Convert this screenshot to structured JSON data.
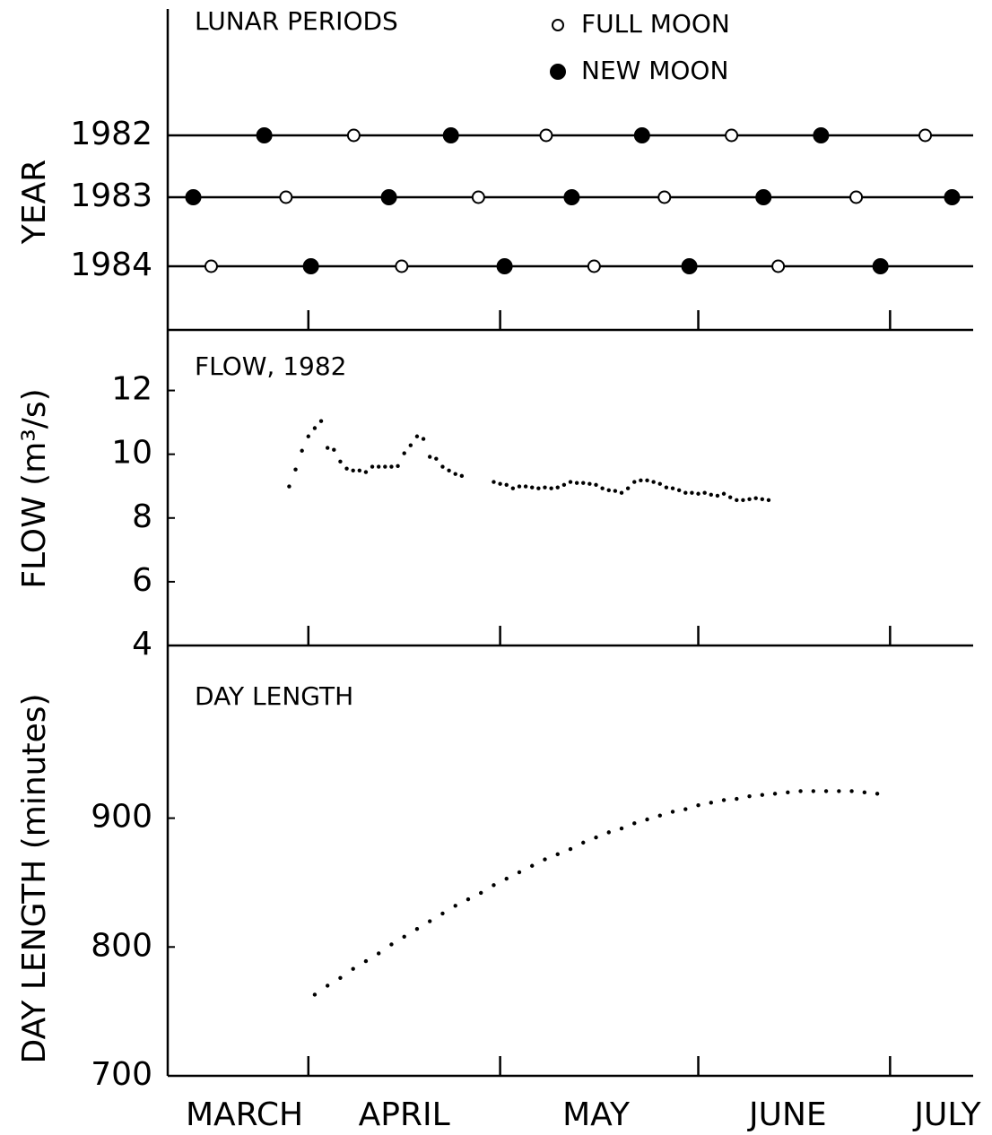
{
  "chart_data": [
    {
      "type": "lunar",
      "title": "LUNAR PERIODS",
      "y_label": "YEAR",
      "categories": [
        "1982",
        "1983",
        "1984"
      ],
      "xlim": [
        9,
        135
      ],
      "xticks": [
        31,
        61,
        92,
        122
      ],
      "series": [
        {
          "name": "FULL MOON",
          "marker": "open",
          "x": [
            [
              38.1,
              68.2,
              97.2,
              127.5
            ],
            [
              27.5,
              57.6,
              86.7,
              116.7
            ],
            [
              15.8,
              45.6,
              75.7,
              104.5
            ]
          ]
        },
        {
          "name": "NEW MOON",
          "marker": "filled",
          "x": [
            [
              24.1,
              53.3,
              83.2,
              111.2
            ],
            [
              13.0,
              43.6,
              72.2,
              102.2,
              131.7
            ],
            [
              31.4,
              61.7,
              90.6,
              120.5
            ]
          ]
        }
      ]
    },
    {
      "type": "dots",
      "title": "FLOW, 1982",
      "y_label": "FLOW (m³/s)",
      "xlim": [
        9,
        135
      ],
      "xticks": [
        31,
        61,
        92,
        122
      ],
      "ylim": [
        4,
        13.9
      ],
      "yticks": [
        4,
        6,
        8,
        10,
        12
      ],
      "x": [
        28,
        29,
        30,
        31,
        32,
        33,
        34,
        35,
        36,
        37,
        38,
        39,
        40,
        41,
        42,
        43,
        44,
        45,
        46,
        47,
        48,
        49,
        50,
        51,
        52,
        53,
        54,
        55,
        60,
        61,
        62,
        63,
        64,
        65,
        66,
        67,
        68,
        69,
        70,
        71,
        72,
        73,
        74,
        75,
        76,
        77,
        78,
        79,
        80,
        81,
        82,
        83,
        84,
        85,
        86,
        87,
        88,
        89,
        90,
        91,
        92,
        93,
        94,
        95,
        96,
        97,
        98,
        99,
        100,
        101,
        102,
        103
      ],
      "values": [
        8.99,
        9.52,
        10.11,
        10.56,
        10.82,
        11.04,
        10.2,
        10.14,
        9.77,
        9.55,
        9.49,
        9.49,
        9.44,
        9.61,
        9.61,
        9.61,
        9.61,
        9.63,
        10.03,
        10.28,
        10.56,
        10.48,
        9.92,
        9.86,
        9.61,
        9.49,
        9.38,
        9.32,
        9.13,
        9.07,
        9.04,
        8.93,
        8.99,
        8.99,
        8.96,
        8.93,
        8.96,
        8.93,
        8.96,
        9.04,
        9.13,
        9.1,
        9.1,
        9.07,
        9.04,
        8.93,
        8.87,
        8.85,
        8.79,
        8.93,
        9.13,
        9.18,
        9.18,
        9.13,
        9.07,
        8.96,
        8.93,
        8.87,
        8.79,
        8.79,
        8.76,
        8.79,
        8.73,
        8.7,
        8.76,
        8.65,
        8.56,
        8.56,
        8.59,
        8.62,
        8.59,
        8.56
      ]
    },
    {
      "type": "dots",
      "title": "DAY LENGTH",
      "y_label": "DAY LENGTH (minutes)",
      "xlim": [
        9,
        135
      ],
      "xticks": [
        31,
        61,
        92,
        122
      ],
      "ylim": [
        700,
        1034
      ],
      "yticks": [
        700,
        800,
        900
      ],
      "x": [
        32,
        34,
        36,
        38,
        40,
        42,
        44,
        46,
        48,
        50,
        52,
        54,
        56,
        58,
        60,
        62,
        64,
        66,
        68,
        70,
        72,
        74,
        76,
        78,
        80,
        82,
        84,
        86,
        88,
        90,
        92,
        94,
        96,
        98,
        100,
        102,
        104,
        106,
        108,
        110,
        112,
        114,
        116,
        118,
        120
      ],
      "values": [
        763,
        770,
        776,
        783,
        789,
        795,
        802,
        808,
        814,
        820,
        826,
        832,
        837,
        842,
        848,
        853,
        858,
        863,
        868,
        872,
        876,
        881,
        885,
        889,
        892,
        896,
        899,
        902,
        905,
        907,
        910,
        912,
        914,
        915,
        917,
        918,
        919,
        920,
        921,
        921,
        921,
        921,
        921,
        920,
        919
      ],
      "xlabels": [
        {
          "value": 21,
          "label": "MARCH"
        },
        {
          "value": 46,
          "label": "APRIL"
        },
        {
          "value": 76,
          "label": "MAY"
        },
        {
          "value": 106,
          "label": "JUNE"
        },
        {
          "value": 131,
          "label": "JULY"
        }
      ]
    }
  ]
}
